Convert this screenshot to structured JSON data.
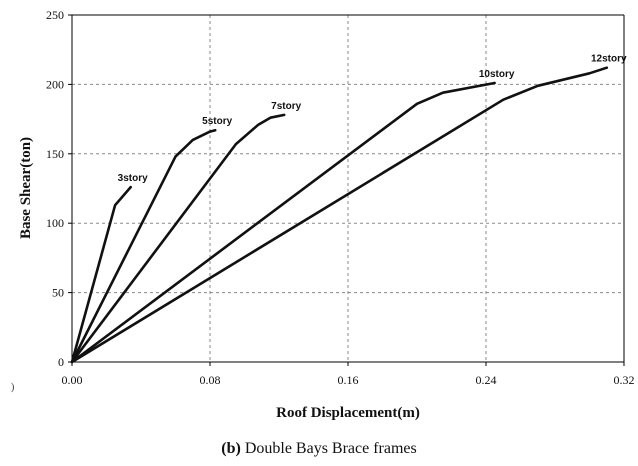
{
  "chart_data": {
    "type": "line",
    "xlabel": "Roof Displacement(m)",
    "ylabel": "Base Shear(ton)",
    "xlim": [
      0,
      0.32
    ],
    "ylim": [
      0,
      250
    ],
    "x_ticks": [
      "0.00",
      "0.08",
      "0.16",
      "0.24",
      "0.32"
    ],
    "y_ticks": [
      "0",
      "50",
      "100",
      "150",
      "200",
      "250"
    ],
    "grid": "dashed",
    "series": [
      {
        "name": "3story",
        "points": [
          [
            0,
            0
          ],
          [
            0.025,
            113
          ],
          [
            0.034,
            126
          ]
        ]
      },
      {
        "name": "5story",
        "points": [
          [
            0,
            0
          ],
          [
            0.06,
            148
          ],
          [
            0.07,
            160
          ],
          [
            0.08,
            166
          ],
          [
            0.083,
            167
          ]
        ]
      },
      {
        "name": "7story",
        "points": [
          [
            0,
            0
          ],
          [
            0.095,
            157
          ],
          [
            0.108,
            171
          ],
          [
            0.115,
            176
          ],
          [
            0.123,
            178
          ]
        ]
      },
      {
        "name": "10story",
        "points": [
          [
            0,
            0
          ],
          [
            0.2,
            186
          ],
          [
            0.215,
            194
          ],
          [
            0.245,
            201
          ]
        ]
      },
      {
        "name": "12story",
        "points": [
          [
            0,
            0
          ],
          [
            0.25,
            189
          ],
          [
            0.27,
            199
          ],
          [
            0.3,
            208
          ],
          [
            0.31,
            212
          ]
        ]
      }
    ]
  },
  "caption": {
    "prefix": "(b)",
    "text": " Double Bays Brace frames"
  },
  "stray_mark": ")"
}
